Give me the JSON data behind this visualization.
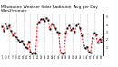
{
  "title": "Milwaukee Weather Solar Radiation  Avg per Day W/m2/minute",
  "title_fontsize": 3.2,
  "background_color": "#ffffff",
  "line_color": "#ff0000",
  "marker_color": "#000000",
  "grid_color": "#b0b0b0",
  "values": [
    3.8,
    3.2,
    4.2,
    3.6,
    3.9,
    3.2,
    2.6,
    2.9,
    2.3,
    2.0,
    1.7,
    1.9,
    1.4,
    1.1,
    0.9,
    1.8,
    0.4,
    0.2,
    0.3,
    0.2,
    4.2,
    4.4,
    4.7,
    4.8,
    4.5,
    4.9,
    4.6,
    3.4,
    4.1,
    3.9,
    3.6,
    3.1,
    2.9,
    0.3,
    0.2,
    0.3,
    2.9,
    3.6,
    3.9,
    3.3,
    3.6,
    3.1,
    3.9,
    4.1,
    3.6,
    2.6,
    1.3,
    0.9,
    1.1,
    0.4,
    0.3,
    2.2,
    2.9,
    2.7,
    1.6,
    2.1,
    1.8,
    2.4
  ],
  "ylim": [
    0,
    5.5
  ],
  "yticks": [
    1,
    2,
    3,
    4,
    5
  ],
  "ytick_labels": [
    "1",
    "2",
    "3",
    "4",
    "5"
  ],
  "vline_indices": [
    4,
    8,
    12,
    16,
    20,
    24,
    28,
    32,
    36,
    40,
    44,
    48,
    52
  ],
  "figwidth": 1.3,
  "figheight": 0.74
}
